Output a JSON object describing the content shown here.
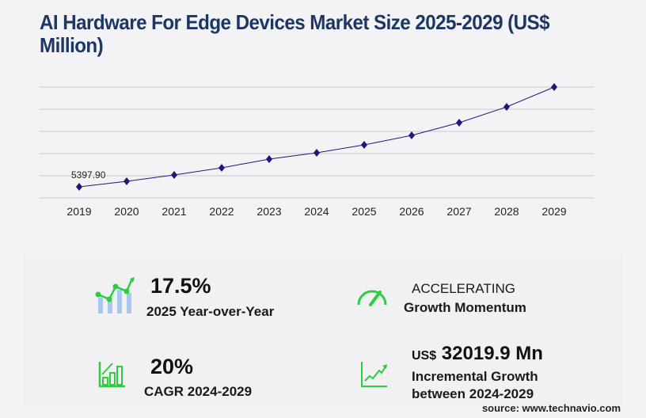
{
  "title": "AI Hardware For Edge Devices Market Size 2025-2029 (US$ Million)",
  "chart_data": {
    "type": "line",
    "title": "AI Hardware For Edge Devices Market Size 2025-2029 (US$ Million)",
    "categories": [
      "2019",
      "2020",
      "2021",
      "2022",
      "2023",
      "2024",
      "2025",
      "2026",
      "2027",
      "2028",
      "2029"
    ],
    "values": [
      5397.9,
      8100,
      11190,
      14660,
      18900,
      22000,
      25850,
      30480,
      36650,
      44370,
      54020
    ],
    "data_labels": {
      "2019": "5397.90"
    },
    "ylim": [
      0,
      54020
    ],
    "grid": true,
    "line_color": "#1a1a7a",
    "marker": "diamond"
  },
  "stats": {
    "yoy_value": "17.5%",
    "yoy_label": "2025 Year-over-Year",
    "momentum_value": "ACCELERATING",
    "momentum_label": "Growth Momentum",
    "cagr_value": "20%",
    "cagr_label": "CAGR 2024-2029",
    "incremental_prefix": "US$",
    "incremental_value": "32019.9 Mn",
    "incremental_label_1": "Incremental Growth",
    "incremental_label_2": "between 2024-2029"
  },
  "icons": [
    "bar-chart-trend-icon",
    "speedometer-icon",
    "growth-bars-icon",
    "line-trend-icon"
  ],
  "accent_color": "#2ecc40",
  "source": "source: www.technavio.com"
}
